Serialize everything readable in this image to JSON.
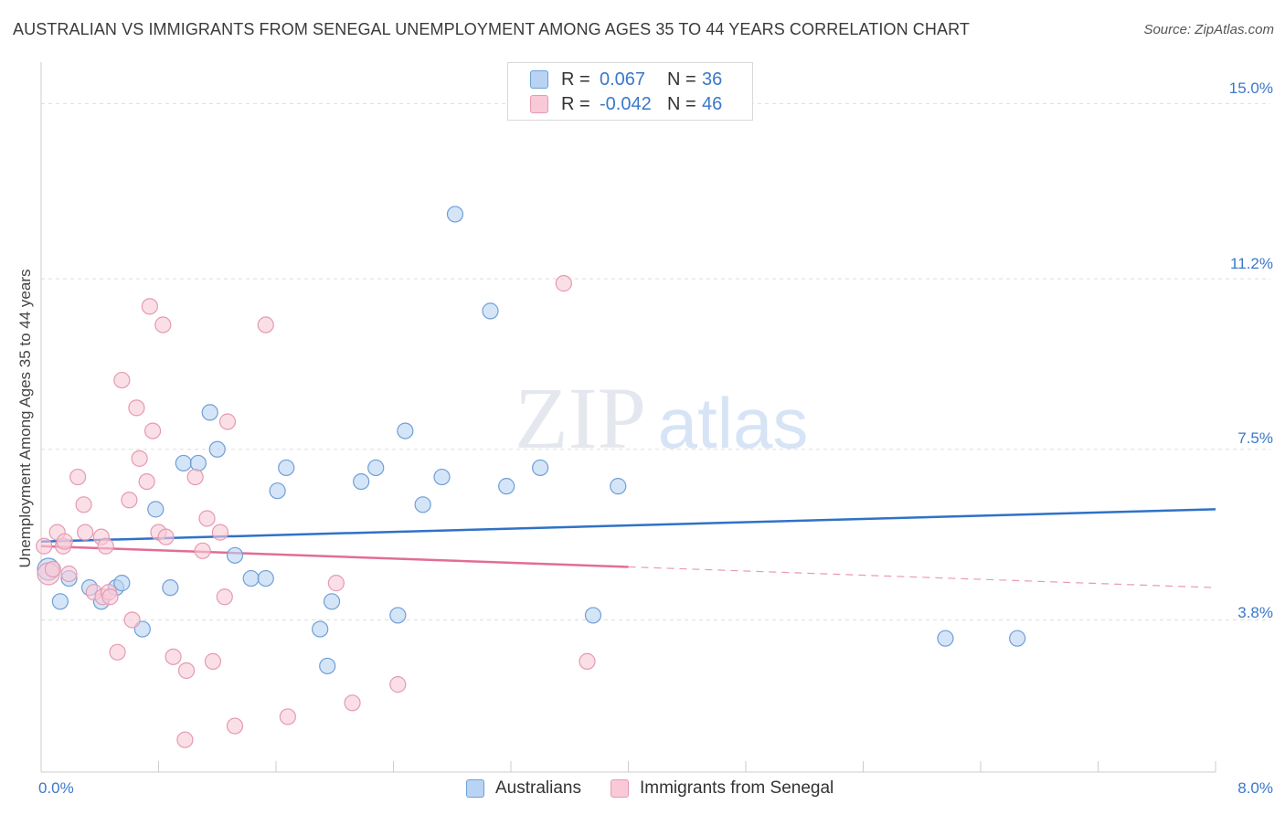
{
  "title": "AUSTRALIAN VS IMMIGRANTS FROM SENEGAL UNEMPLOYMENT AMONG AGES 35 TO 44 YEARS CORRELATION CHART",
  "source": "Source: ZipAtlas.com",
  "watermark": {
    "zip": "ZIP",
    "atlas": "atlas"
  },
  "legend": {
    "rows": [
      {
        "swatch_color": "#b9d3f3",
        "swatch_border": "#6f9fd8",
        "r_label": "R =",
        "r_value": "0.067",
        "n_label": "N =",
        "n_value": "36"
      },
      {
        "swatch_color": "#f9c9d7",
        "swatch_border": "#e59ab2",
        "r_label": "R =",
        "r_value": "-0.042",
        "n_label": "N =",
        "n_value": "46"
      }
    ]
  },
  "bottom_legend": {
    "series1": "Australians",
    "series2": "Immigrants from Senegal"
  },
  "chart_data": {
    "type": "scatter",
    "title": "AUSTRALIAN VS IMMIGRANTS FROM SENEGAL UNEMPLOYMENT AMONG AGES 35 TO 44 YEARS CORRELATION CHART",
    "xlabel": "",
    "ylabel": "Unemployment Among Ages 35 to 44 years",
    "xlim": [
      0,
      8
    ],
    "ylim": [
      0.5,
      15.7
    ],
    "x_tick_labels": [
      "0.0%",
      "8.0%"
    ],
    "y_ticks": [
      3.8,
      7.5,
      11.2,
      15.0
    ],
    "y_tick_labels": [
      "3.8%",
      "7.5%",
      "11.2%",
      "15.0%"
    ],
    "grid": true,
    "series": [
      {
        "name": "Australians",
        "color": "#6f9fd8",
        "fill": "#b9d3f3",
        "points": [
          [
            0.05,
            4.9
          ],
          [
            0.13,
            4.2
          ],
          [
            0.19,
            4.7
          ],
          [
            0.33,
            4.5
          ],
          [
            0.41,
            4.2
          ],
          [
            0.51,
            4.5
          ],
          [
            0.55,
            4.6
          ],
          [
            0.69,
            3.6
          ],
          [
            0.78,
            6.2
          ],
          [
            0.88,
            4.5
          ],
          [
            0.97,
            7.2
          ],
          [
            1.07,
            7.2
          ],
          [
            1.15,
            8.3
          ],
          [
            1.2,
            7.5
          ],
          [
            1.32,
            5.2
          ],
          [
            1.43,
            4.7
          ],
          [
            1.53,
            4.7
          ],
          [
            1.61,
            6.6
          ],
          [
            1.67,
            7.1
          ],
          [
            1.9,
            3.6
          ],
          [
            1.95,
            2.8
          ],
          [
            1.98,
            4.2
          ],
          [
            2.18,
            6.8
          ],
          [
            2.28,
            7.1
          ],
          [
            2.43,
            3.9
          ],
          [
            2.48,
            7.9
          ],
          [
            2.6,
            6.3
          ],
          [
            2.73,
            6.9
          ],
          [
            2.82,
            12.6
          ],
          [
            3.06,
            10.5
          ],
          [
            3.17,
            6.7
          ],
          [
            3.4,
            7.1
          ],
          [
            3.76,
            3.9
          ],
          [
            3.93,
            6.7
          ],
          [
            6.16,
            3.4
          ],
          [
            6.65,
            3.4
          ]
        ],
        "trend": {
          "x0": 0.0,
          "y0": 5.5,
          "x1": 8.0,
          "y1": 6.2
        }
      },
      {
        "name": "Immigrants from Senegal",
        "color": "#e59ab2",
        "fill": "#f9c9d7",
        "points": [
          [
            0.02,
            5.4
          ],
          [
            0.05,
            4.8
          ],
          [
            0.11,
            5.7
          ],
          [
            0.15,
            5.4
          ],
          [
            0.19,
            4.8
          ],
          [
            0.25,
            6.9
          ],
          [
            0.29,
            6.3
          ],
          [
            0.3,
            5.7
          ],
          [
            0.36,
            4.4
          ],
          [
            0.41,
            5.6
          ],
          [
            0.42,
            4.3
          ],
          [
            0.44,
            5.4
          ],
          [
            0.46,
            4.4
          ],
          [
            0.52,
            3.1
          ],
          [
            0.55,
            9.0
          ],
          [
            0.6,
            6.4
          ],
          [
            0.62,
            3.8
          ],
          [
            0.65,
            8.4
          ],
          [
            0.67,
            7.3
          ],
          [
            0.72,
            6.8
          ],
          [
            0.74,
            10.6
          ],
          [
            0.76,
            7.9
          ],
          [
            0.8,
            5.7
          ],
          [
            0.83,
            10.2
          ],
          [
            0.85,
            5.6
          ],
          [
            0.9,
            3.0
          ],
          [
            0.98,
            1.2
          ],
          [
            0.99,
            2.7
          ],
          [
            1.05,
            6.9
          ],
          [
            1.1,
            5.3
          ],
          [
            1.13,
            6.0
          ],
          [
            1.17,
            2.9
          ],
          [
            1.22,
            5.7
          ],
          [
            1.25,
            4.3
          ],
          [
            1.27,
            8.1
          ],
          [
            1.32,
            1.5
          ],
          [
            1.53,
            10.2
          ],
          [
            1.68,
            1.7
          ],
          [
            2.01,
            4.6
          ],
          [
            2.12,
            2.0
          ],
          [
            2.43,
            2.4
          ],
          [
            3.56,
            11.1
          ],
          [
            3.72,
            2.9
          ],
          [
            0.08,
            4.9
          ],
          [
            0.16,
            5.5
          ],
          [
            0.47,
            4.3
          ]
        ],
        "trend": {
          "x0": 0.0,
          "y0": 5.4,
          "x1": 4.0,
          "y1": 4.95,
          "dash_x1": 8.0,
          "dash_y1": 4.5
        }
      }
    ]
  }
}
